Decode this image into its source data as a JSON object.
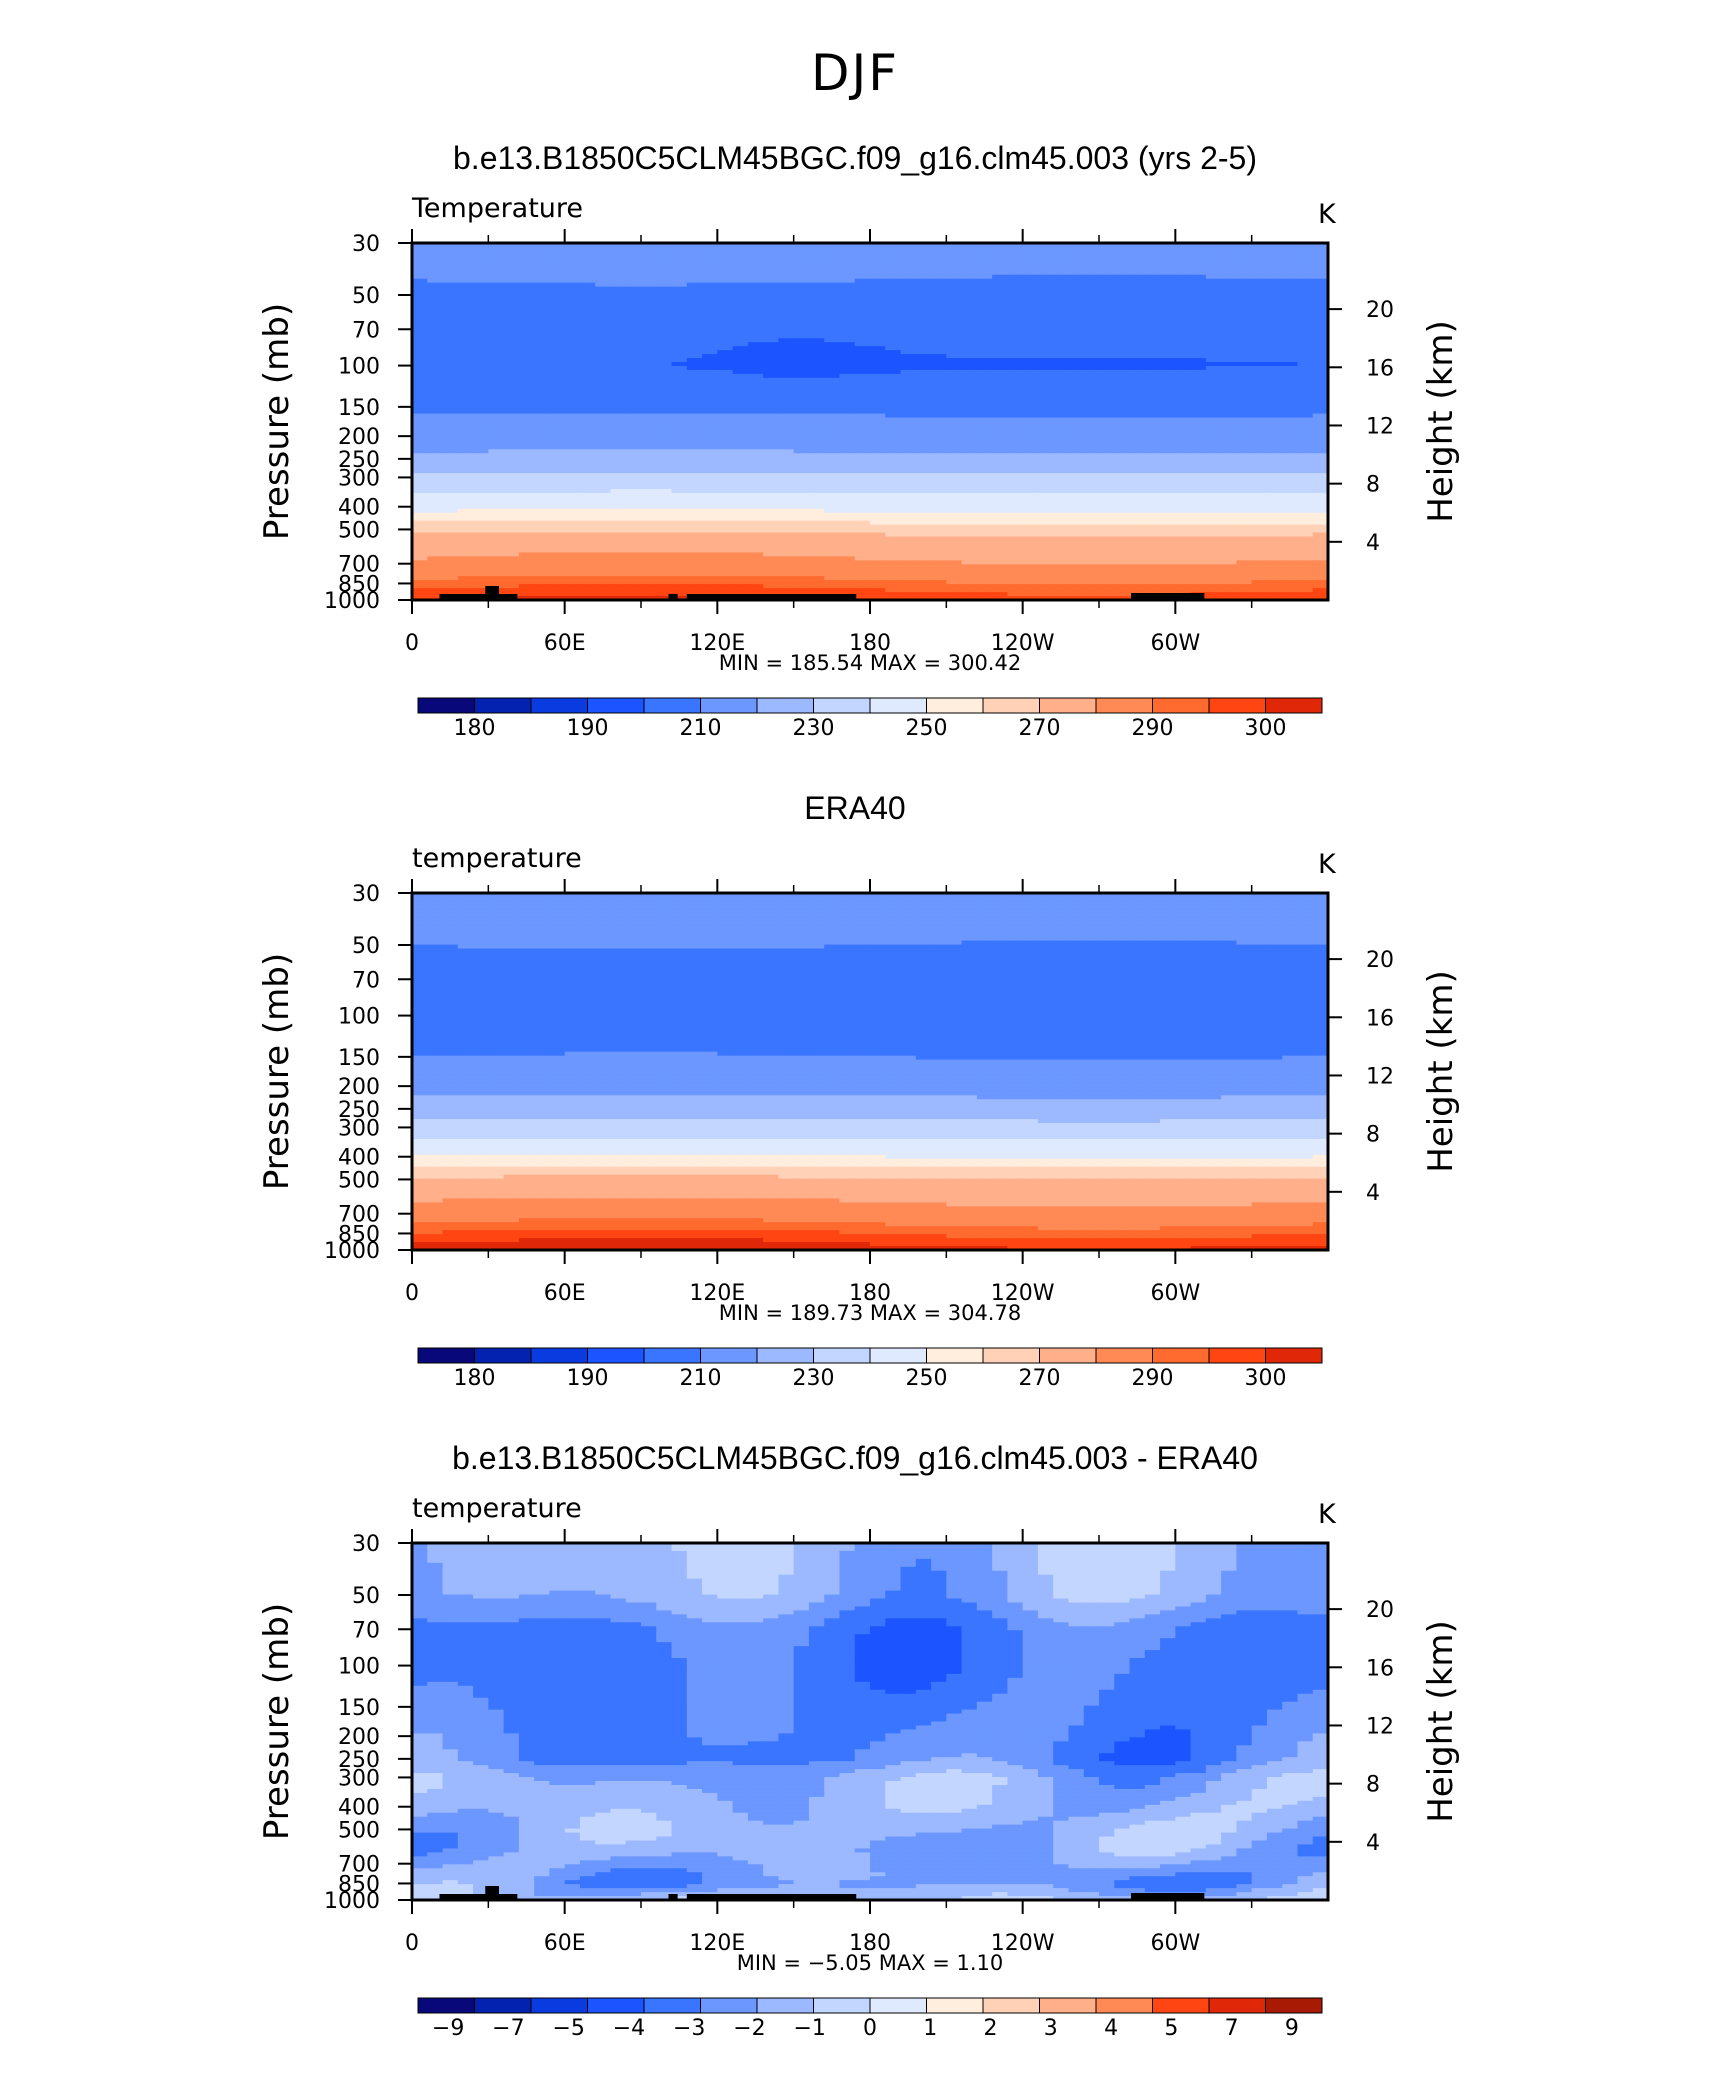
{
  "page_title": "DJF",
  "colors": {
    "temp_palette": [
      "#08087a",
      "#0422b0",
      "#0a3be0",
      "#1c55ff",
      "#3a75ff",
      "#6b97ff",
      "#9cb8ff",
      "#c3d6ff",
      "#dfeaff",
      "#ffeedd",
      "#ffd2b8",
      "#ffb08a",
      "#ff8a55",
      "#ff6a2e",
      "#ff4612",
      "#e02808",
      "#a81a04",
      "#7a0000"
    ],
    "land_mask": "#000000"
  },
  "panels": [
    {
      "title": "b.e13.B1850C5CLM45BGC.f09_g16.clm45.003 (yrs 2-5)",
      "variable": "Temperature",
      "units": "K",
      "stats": "MIN =  185.54   MAX =  300.42",
      "colorbar_labels": [
        "180",
        "190",
        "210",
        "230",
        "250",
        "270",
        "290",
        "300"
      ]
    },
    {
      "title": "ERA40",
      "variable": "temperature",
      "units": "K",
      "stats": "MIN =  189.73   MAX =  304.78",
      "colorbar_labels": [
        "180",
        "190",
        "210",
        "230",
        "250",
        "270",
        "290",
        "300"
      ]
    },
    {
      "title": "b.e13.B1850C5CLM45BGC.f09_g16.clm45.003 - ERA40",
      "variable": "temperature",
      "units": "K",
      "stats": "MIN =   −5.05   MAX =    1.10",
      "colorbar_labels": [
        "−9",
        "−7",
        "−5",
        "−4",
        "−3",
        "−2",
        "−1",
        "0",
        "1",
        "2",
        "3",
        "4",
        "5",
        "7",
        "9"
      ]
    }
  ],
  "axes": {
    "ylabel_left": "Pressure (mb)",
    "ylabel_right": "Height (km)",
    "pressure_ticks": [
      "30",
      "50",
      "70",
      "100",
      "150",
      "200",
      "250",
      "300",
      "400",
      "500",
      "700",
      "850",
      "1000"
    ],
    "height_ticks": [
      "20",
      "16",
      "12",
      "8",
      "4"
    ],
    "lon_ticks": [
      "0",
      "60E",
      "120E",
      "180",
      "120W",
      "60W"
    ]
  },
  "chart_data": [
    {
      "type": "heatmap",
      "title": "b.e13.B1850C5CLM45BGC.f09_g16.clm45.003 (yrs 2-5)",
      "x": "longitude 0-360",
      "y_pressure_levels_mb": [
        30,
        50,
        70,
        100,
        150,
        200,
        250,
        300,
        400,
        500,
        700,
        850,
        1000
      ],
      "height_ticks_km": [
        20,
        16,
        12,
        8,
        4
      ],
      "min": 185.54,
      "max": 300.42,
      "levels": [
        180,
        185,
        190,
        200,
        210,
        220,
        230,
        240,
        250,
        255,
        260,
        270,
        280,
        285,
        290,
        295,
        300
      ],
      "profile_K": [
        {
          "p": 30,
          "T": 215
        },
        {
          "p": 50,
          "T": 208
        },
        {
          "p": 70,
          "T": 203
        },
        {
          "p": 100,
          "T": 200
        },
        {
          "p": 150,
          "T": 208
        },
        {
          "p": 200,
          "T": 215
        },
        {
          "p": 250,
          "T": 222
        },
        {
          "p": 300,
          "T": 232
        },
        {
          "p": 400,
          "T": 248
        },
        {
          "p": 500,
          "T": 258
        },
        {
          "p": 700,
          "T": 272
        },
        {
          "p": 850,
          "T": 282
        },
        {
          "p": 1000,
          "T": 290
        }
      ]
    },
    {
      "type": "heatmap",
      "title": "ERA40",
      "x": "longitude 0-360",
      "y_pressure_levels_mb": [
        30,
        50,
        70,
        100,
        150,
        200,
        250,
        300,
        400,
        500,
        700,
        850,
        1000
      ],
      "min": 189.73,
      "max": 304.78,
      "levels": [
        180,
        185,
        190,
        200,
        210,
        220,
        230,
        240,
        250,
        255,
        260,
        270,
        280,
        285,
        290,
        295,
        300
      ],
      "profile_K": [
        {
          "p": 30,
          "T": 218
        },
        {
          "p": 50,
          "T": 210
        },
        {
          "p": 70,
          "T": 205
        },
        {
          "p": 100,
          "T": 203
        },
        {
          "p": 150,
          "T": 210
        },
        {
          "p": 200,
          "T": 217
        },
        {
          "p": 250,
          "T": 224
        },
        {
          "p": 300,
          "T": 234
        },
        {
          "p": 400,
          "T": 250
        },
        {
          "p": 500,
          "T": 261
        },
        {
          "p": 700,
          "T": 275
        },
        {
          "p": 850,
          "T": 285
        },
        {
          "p": 1000,
          "T": 293
        }
      ]
    },
    {
      "type": "heatmap",
      "title": "b.e13.B1850C5CLM45BGC.f09_g16.clm45.003 - ERA40",
      "x": "longitude 0-360",
      "y_pressure_levels_mb": [
        30,
        50,
        70,
        100,
        150,
        200,
        250,
        300,
        400,
        500,
        700,
        850,
        1000
      ],
      "min": -5.05,
      "max": 1.1,
      "levels": [
        -9,
        -7,
        -5,
        -4,
        -3,
        -2,
        -1,
        0,
        1,
        2,
        3,
        4,
        5,
        7,
        9
      ],
      "profile_K": [
        {
          "p": 30,
          "T": -1.5
        },
        {
          "p": 50,
          "T": -1.8
        },
        {
          "p": 70,
          "T": -3.2
        },
        {
          "p": 100,
          "T": -3.5
        },
        {
          "p": 150,
          "T": -3.2
        },
        {
          "p": 200,
          "T": -3.0
        },
        {
          "p": 250,
          "T": -3.0
        },
        {
          "p": 300,
          "T": -1.8
        },
        {
          "p": 400,
          "T": -1.5
        },
        {
          "p": 500,
          "T": -1.6
        },
        {
          "p": 700,
          "T": -2.2
        },
        {
          "p": 850,
          "T": -2.5
        },
        {
          "p": 1000,
          "T": -1.2
        }
      ]
    }
  ]
}
